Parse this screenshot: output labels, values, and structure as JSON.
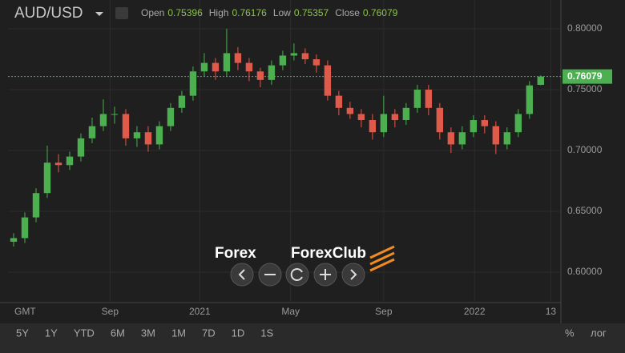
{
  "chart_data": {
    "type": "candlestick",
    "title": "AUD/USD",
    "timezone": "GMT",
    "ohlc_labels": [
      "Open",
      "High",
      "Low",
      "Close"
    ],
    "x": [
      0,
      1,
      2,
      3,
      4,
      5,
      6,
      7,
      8,
      9,
      10,
      11,
      12,
      13,
      14,
      15,
      16,
      17,
      18,
      19,
      20,
      21,
      22,
      23,
      24,
      25,
      26,
      27,
      28,
      29,
      30,
      31,
      32,
      33,
      34,
      35,
      36,
      37,
      38,
      39,
      40,
      41,
      42,
      43,
      44,
      45,
      46,
      47
    ],
    "open": [
      0.625,
      0.628,
      0.645,
      0.665,
      0.69,
      0.688,
      0.695,
      0.71,
      0.72,
      0.73,
      0.73,
      0.71,
      0.715,
      0.705,
      0.72,
      0.735,
      0.745,
      0.765,
      0.772,
      0.765,
      0.78,
      0.772,
      0.765,
      0.758,
      0.77,
      0.778,
      0.78,
      0.775,
      0.77,
      0.745,
      0.735,
      0.73,
      0.725,
      0.715,
      0.73,
      0.725,
      0.735,
      0.75,
      0.735,
      0.715,
      0.705,
      0.715,
      0.725,
      0.72,
      0.705,
      0.715,
      0.73,
      0.75396
    ],
    "high": [
      0.632,
      0.649,
      0.669,
      0.704,
      0.697,
      0.699,
      0.714,
      0.727,
      0.742,
      0.736,
      0.734,
      0.72,
      0.72,
      0.724,
      0.739,
      0.749,
      0.769,
      0.78,
      0.776,
      0.8,
      0.785,
      0.776,
      0.768,
      0.774,
      0.782,
      0.788,
      0.784,
      0.779,
      0.774,
      0.749,
      0.74,
      0.734,
      0.73,
      0.745,
      0.734,
      0.739,
      0.754,
      0.754,
      0.739,
      0.719,
      0.72,
      0.729,
      0.729,
      0.724,
      0.719,
      0.734,
      0.757,
      0.76176
    ],
    "low": [
      0.621,
      0.624,
      0.641,
      0.661,
      0.682,
      0.684,
      0.691,
      0.706,
      0.716,
      0.722,
      0.704,
      0.703,
      0.699,
      0.701,
      0.716,
      0.731,
      0.741,
      0.761,
      0.758,
      0.761,
      0.766,
      0.757,
      0.752,
      0.754,
      0.766,
      0.774,
      0.771,
      0.764,
      0.741,
      0.729,
      0.726,
      0.719,
      0.709,
      0.711,
      0.719,
      0.721,
      0.731,
      0.729,
      0.709,
      0.698,
      0.701,
      0.711,
      0.714,
      0.697,
      0.701,
      0.711,
      0.726,
      0.75357
    ],
    "close": [
      0.628,
      0.645,
      0.665,
      0.69,
      0.688,
      0.695,
      0.71,
      0.72,
      0.73,
      0.73,
      0.71,
      0.715,
      0.705,
      0.72,
      0.735,
      0.745,
      0.765,
      0.772,
      0.765,
      0.78,
      0.772,
      0.765,
      0.758,
      0.77,
      0.778,
      0.78,
      0.775,
      0.77,
      0.745,
      0.735,
      0.73,
      0.725,
      0.715,
      0.73,
      0.725,
      0.735,
      0.75,
      0.735,
      0.715,
      0.705,
      0.715,
      0.725,
      0.72,
      0.705,
      0.715,
      0.73,
      0.7535,
      0.76079
    ],
    "up_color": "#4caf50",
    "down_color": "#e05a4b",
    "xlim": [
      -0.5,
      48.8
    ],
    "ylim": [
      0.575,
      0.8237
    ],
    "xticks": [
      {
        "value": 8.6,
        "label": "Sep"
      },
      {
        "value": 16.6,
        "label": "2021"
      },
      {
        "value": 24.7,
        "label": "May"
      },
      {
        "value": 33.0,
        "label": "Sep"
      },
      {
        "value": 41.1,
        "label": "2022"
      },
      {
        "value": 47.9,
        "label": "13"
      }
    ],
    "yticks": [
      {
        "value": 0.8,
        "label": "0.80000"
      },
      {
        "value": 0.75,
        "label": "0.75000"
      },
      {
        "value": 0.7,
        "label": "0.70000"
      },
      {
        "value": 0.65,
        "label": "0.65000"
      },
      {
        "value": 0.6,
        "label": "0.60000"
      }
    ],
    "grid": true
  },
  "ui": {
    "watermark": [
      "Forex",
      "ForexClub"
    ],
    "periods": [
      "5Y",
      "1Y",
      "YTD",
      "6M",
      "3M",
      "1M",
      "7D",
      "1D",
      "1S"
    ],
    "scale_buttons": [
      "%",
      "лог"
    ]
  }
}
